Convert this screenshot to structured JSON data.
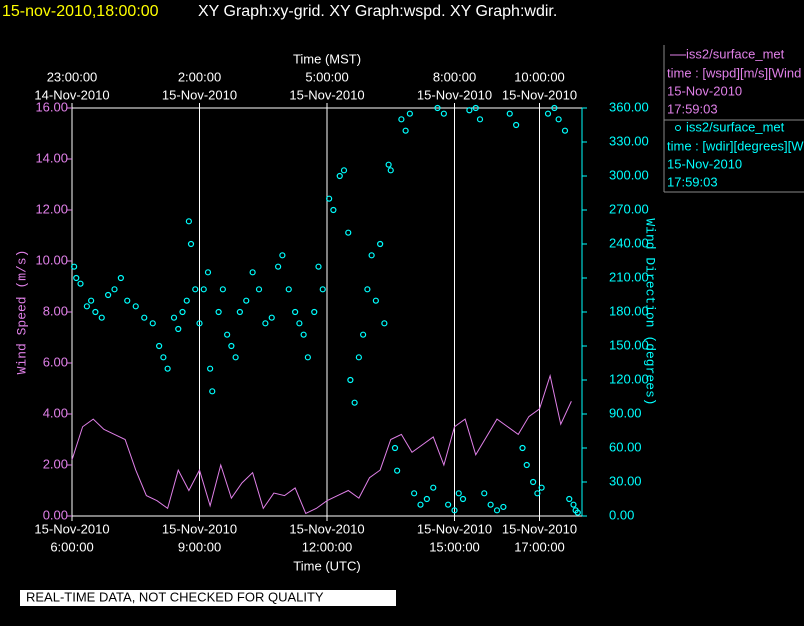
{
  "header": {
    "timestamp": "15-nov-2010,18:00:00",
    "title": "XY Graph:xy-grid.  XY Graph:wspd.  XY Graph:wdir."
  },
  "chart_data": {
    "type": "line",
    "xlabel": "Time (UTC)",
    "x2label": "Time (MST)",
    "ylabel": "Wind Speed (m/s)",
    "y2label": "Wind Direction (degrees)",
    "xlim": [
      6,
      18
    ],
    "xticks": [
      {
        "value": 6,
        "label": [
          "15-Nov-2010",
          "6:00:00"
        ]
      },
      {
        "value": 9,
        "label": [
          "15-Nov-2010",
          "9:00:00"
        ]
      },
      {
        "value": 12,
        "label": [
          "15-Nov-2010",
          "12:00:00"
        ]
      },
      {
        "value": 15,
        "label": [
          "15-Nov-2010",
          "15:00:00"
        ]
      },
      {
        "value": 17,
        "label": [
          "15-Nov-2010",
          "17:00:00"
        ]
      }
    ],
    "x2ticks": [
      {
        "value": 6,
        "label": [
          "23:00:00",
          "14-Nov-2010"
        ]
      },
      {
        "value": 9,
        "label": [
          "2:00:00",
          "15-Nov-2010"
        ]
      },
      {
        "value": 12,
        "label": [
          "5:00:00",
          "15-Nov-2010"
        ]
      },
      {
        "value": 15,
        "label": [
          "8:00:00",
          "15-Nov-2010"
        ]
      },
      {
        "value": 17,
        "label": [
          "10:00:00",
          "15-Nov-2010"
        ]
      }
    ],
    "ylim": [
      0,
      16
    ],
    "yticks": [
      {
        "value": 0,
        "label": "0.00"
      },
      {
        "value": 2,
        "label": "2.00"
      },
      {
        "value": 4,
        "label": "4.00"
      },
      {
        "value": 6,
        "label": "6.00"
      },
      {
        "value": 8,
        "label": "8.00"
      },
      {
        "value": 10,
        "label": "10.00"
      },
      {
        "value": 12,
        "label": "12.00"
      },
      {
        "value": 14,
        "label": "14.00"
      },
      {
        "value": 16,
        "label": "16.00"
      }
    ],
    "y2lim": [
      0,
      360
    ],
    "y2ticks": [
      {
        "value": 0,
        "label": "0.00"
      },
      {
        "value": 30,
        "label": "30.00"
      },
      {
        "value": 60,
        "label": "60.00"
      },
      {
        "value": 90,
        "label": "90.00"
      },
      {
        "value": 120,
        "label": "120.00"
      },
      {
        "value": 150,
        "label": "150.00"
      },
      {
        "value": 180,
        "label": "180.00"
      },
      {
        "value": 210,
        "label": "210.00"
      },
      {
        "value": 240,
        "label": "240.00"
      },
      {
        "value": 270,
        "label": "270.00"
      },
      {
        "value": 300,
        "label": "300.00"
      },
      {
        "value": 330,
        "label": "330.00"
      },
      {
        "value": 360,
        "label": "360.00"
      }
    ],
    "grid": true,
    "series": [
      {
        "name": "iss2/surface_met",
        "type": "line",
        "color": "#e080e8",
        "legend_details": [
          "time : [wspd][m/s][Wind",
          "15-Nov-2010",
          "17:59:03"
        ],
        "x": [
          6,
          6.25,
          6.5,
          6.75,
          7,
          7.25,
          7.5,
          7.75,
          8,
          8.25,
          8.5,
          8.75,
          9,
          9.25,
          9.5,
          9.75,
          10,
          10.25,
          10.5,
          10.75,
          11,
          11.25,
          11.5,
          11.75,
          12,
          12.25,
          12.5,
          12.75,
          13,
          13.25,
          13.5,
          13.75,
          14,
          14.25,
          14.5,
          14.75,
          15,
          15.25,
          15.5,
          15.75,
          16,
          16.25,
          16.5,
          16.75,
          17,
          17.25,
          17.5,
          17.75
        ],
        "values": [
          2.2,
          3.5,
          3.8,
          3.4,
          3.2,
          3.0,
          1.8,
          0.8,
          0.6,
          0.3,
          1.8,
          1.0,
          1.8,
          0.4,
          2.0,
          0.7,
          1.3,
          1.7,
          0.3,
          0.9,
          0.8,
          1.1,
          0.1,
          0.3,
          0.6,
          0.8,
          1.0,
          0.7,
          1.5,
          1.8,
          3.0,
          3.2,
          2.5,
          2.8,
          3.1,
          2.0,
          3.5,
          3.8,
          2.4,
          3.1,
          3.8,
          3.5,
          3.2,
          3.9,
          4.2,
          5.5,
          3.6,
          4.5
        ]
      },
      {
        "name": "iss2/surface_met",
        "type": "scatter",
        "axis": "y2",
        "color": "#00ffff",
        "legend_details": [
          "time : [wdir][degrees][W",
          "15-Nov-2010",
          "17:59:03"
        ],
        "x": [
          6.05,
          6.1,
          6.2,
          6.35,
          6.45,
          6.55,
          6.7,
          6.85,
          7.0,
          7.15,
          7.3,
          7.5,
          7.7,
          7.9,
          8.05,
          8.15,
          8.25,
          8.4,
          8.5,
          8.6,
          8.7,
          8.75,
          8.8,
          8.9,
          9.0,
          9.1,
          9.2,
          9.25,
          9.3,
          9.45,
          9.55,
          9.65,
          9.75,
          9.85,
          9.95,
          10.1,
          10.25,
          10.4,
          10.55,
          10.7,
          10.85,
          10.95,
          11.1,
          11.25,
          11.35,
          11.45,
          11.55,
          11.7,
          11.8,
          11.9,
          12.05,
          12.15,
          12.3,
          12.4,
          12.5,
          12.55,
          12.65,
          12.75,
          12.85,
          12.95,
          13.05,
          13.15,
          13.25,
          13.35,
          13.45,
          13.5,
          13.6,
          13.65,
          13.75,
          13.85,
          13.95,
          14.05,
          14.2,
          14.35,
          14.5,
          14.6,
          14.75,
          14.85,
          15.0,
          15.1,
          15.2,
          15.35,
          15.5,
          15.6,
          15.7,
          15.85,
          16.0,
          16.15,
          16.3,
          16.45,
          16.6,
          16.7,
          16.85,
          16.95,
          17.05,
          17.2,
          17.35,
          17.45,
          17.6,
          17.7,
          17.8,
          17.85,
          17.9
        ],
        "values": [
          220,
          210,
          205,
          185,
          190,
          180,
          175,
          195,
          200,
          210,
          190,
          185,
          175,
          170,
          150,
          140,
          130,
          175,
          165,
          180,
          190,
          260,
          240,
          200,
          170,
          200,
          215,
          130,
          110,
          180,
          200,
          160,
          150,
          140,
          180,
          190,
          215,
          200,
          170,
          175,
          220,
          230,
          200,
          180,
          170,
          160,
          140,
          180,
          220,
          200,
          280,
          270,
          300,
          305,
          250,
          120,
          100,
          140,
          160,
          200,
          230,
          190,
          240,
          170,
          310,
          305,
          60,
          40,
          350,
          340,
          355,
          20,
          10,
          15,
          25,
          360,
          355,
          10,
          5,
          20,
          15,
          358,
          360,
          350,
          20,
          10,
          5,
          8,
          355,
          345,
          60,
          45,
          30,
          20,
          25,
          355,
          360,
          350,
          340,
          15,
          10,
          5,
          3
        ]
      }
    ]
  },
  "footer_note": "REAL-TIME DATA, NOT CHECKED FOR QUALITY"
}
